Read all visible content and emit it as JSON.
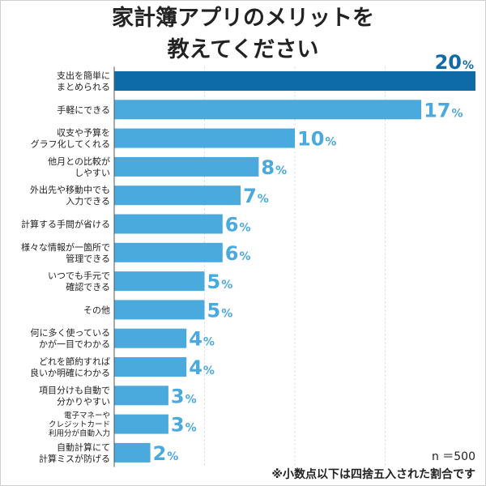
{
  "chart_data": {
    "type": "bar",
    "orientation": "horizontal",
    "title_lines": [
      "家計簿アプリのメリットを",
      "教えてください"
    ],
    "categories": [
      [
        "支出を簡単に",
        "まとめられる"
      ],
      [
        "手軽にできる"
      ],
      [
        "収支や予算を",
        "グラフ化してくれる"
      ],
      [
        "他月との比較が",
        "しやすい"
      ],
      [
        "外出先や移動中でも",
        "入力できる"
      ],
      [
        "計算する手間が省ける"
      ],
      [
        "様々な情報が一箇所で",
        "管理できる"
      ],
      [
        "いつでも手元で",
        "確認できる"
      ],
      [
        "その他"
      ],
      [
        "何に多く使っている",
        "かが一目でわかる"
      ],
      [
        "どれを節約すれば",
        "良いか明確にわかる"
      ],
      [
        "項目分けも自動で",
        "分かりやすい"
      ],
      [
        "電子マネーや",
        "クレジットカード",
        "利用分が自動入力"
      ],
      [
        "自動計算にて",
        "計算ミスが防げる"
      ]
    ],
    "values": [
      20,
      17,
      10,
      8,
      7,
      6,
      6,
      5,
      5,
      4,
      4,
      3,
      3,
      2
    ],
    "unit": "%",
    "xlim": [
      0,
      20
    ],
    "sample_size": "n ＝500",
    "note": "※小数点以下は四捨五入された割合です",
    "colors": {
      "highlight_bar": "#0f6aa8",
      "bar": "#4aa9dd",
      "highlight_label": "#0f6aa8",
      "label": "#4aa9dd",
      "gridline": "#d8d8d8",
      "axis": "#555555"
    }
  }
}
